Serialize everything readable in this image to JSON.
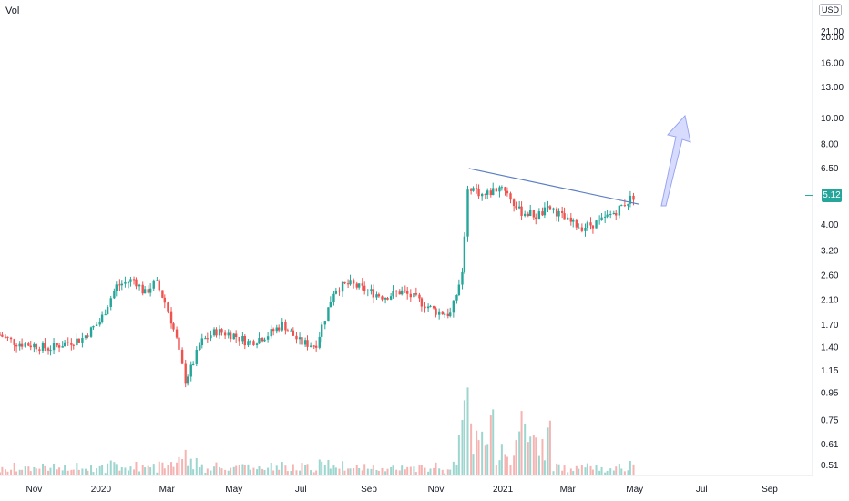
{
  "header": {
    "indicator_label": "Vol",
    "currency_unit": "USD"
  },
  "last_price": {
    "label": "5.12",
    "value": 5.12,
    "color": "#26a69a"
  },
  "colors": {
    "up": "#26a69a",
    "down": "#ef5350",
    "trendline": "#5b7ec6",
    "arrow_fill": "#d7dcff",
    "arrow_stroke": "#9aa6f0",
    "grid_axis": "#e0e3eb",
    "vol_up": "#9cd6cf",
    "vol_down": "#f5b4b2"
  },
  "chart_data": {
    "type": "candlestick",
    "title": "",
    "y_scale": "log",
    "y_ticks": [
      "21.00",
      "20.00",
      "16.00",
      "13.00",
      "10.00",
      "8.00",
      "6.50",
      "5.12",
      "4.00",
      "3.20",
      "2.60",
      "2.10",
      "1.70",
      "1.40",
      "1.15",
      "0.95",
      "0.75",
      "0.61",
      "0.51"
    ],
    "y_tick_values": [
      21.0,
      20.0,
      16.0,
      13.0,
      10.0,
      8.0,
      6.5,
      5.12,
      4.0,
      3.2,
      2.6,
      2.1,
      1.7,
      1.4,
      1.15,
      0.95,
      0.75,
      0.61,
      0.51
    ],
    "x_ticks": [
      "Nov",
      "2020",
      "Mar",
      "May",
      "Jul",
      "Sep",
      "Nov",
      "2021",
      "Mar",
      "May",
      "Jul",
      "Sep"
    ],
    "x_tick_dates": [
      "2019-11-01",
      "2020-01-01",
      "2020-03-01",
      "2020-05-01",
      "2020-07-01",
      "2020-09-01",
      "2020-11-01",
      "2021-01-01",
      "2021-03-01",
      "2021-05-01",
      "2021-07-01",
      "2021-09-01"
    ],
    "x_range": [
      "2019-10-01",
      "2021-10-10"
    ],
    "series": [
      {
        "dates": [
          "2019-10-01",
          "2019-10-15",
          "2019-11-01",
          "2019-11-15",
          "2019-12-01",
          "2019-12-15",
          "2020-01-01",
          "2020-01-15",
          "2020-02-01",
          "2020-02-10",
          "2020-02-20",
          "2020-03-01",
          "2020-03-10",
          "2020-03-18",
          "2020-03-25",
          "2020-04-01",
          "2020-04-15",
          "2020-05-01",
          "2020-05-15",
          "2020-06-01",
          "2020-06-15",
          "2020-07-01",
          "2020-07-15",
          "2020-08-01",
          "2020-08-15",
          "2020-09-01",
          "2020-09-15",
          "2020-10-01",
          "2020-10-15",
          "2020-11-01",
          "2020-11-15",
          "2020-11-25",
          "2020-12-01",
          "2020-12-15",
          "2021-01-01",
          "2021-01-15",
          "2021-02-01",
          "2021-02-15",
          "2021-03-01",
          "2021-03-15",
          "2021-04-01",
          "2021-04-15",
          "2021-05-01"
        ],
        "close": [
          1.55,
          1.45,
          1.42,
          1.38,
          1.45,
          1.5,
          1.75,
          2.35,
          2.5,
          2.2,
          2.45,
          2.0,
          1.5,
          1.05,
          1.2,
          1.45,
          1.6,
          1.55,
          1.45,
          1.55,
          1.7,
          1.45,
          1.42,
          2.3,
          2.4,
          2.25,
          2.15,
          2.25,
          2.1,
          1.9,
          1.85,
          2.6,
          5.6,
          5.1,
          5.6,
          4.5,
          4.3,
          4.6,
          4.1,
          3.9,
          4.1,
          4.5,
          5.12
        ]
      }
    ],
    "trendline": {
      "start": [
        "2020-12-01",
        6.45
      ],
      "end": [
        "2021-05-05",
        4.75
      ]
    },
    "annotation": "up-arrow",
    "volume_max_price_axis_fraction": 0.3
  }
}
